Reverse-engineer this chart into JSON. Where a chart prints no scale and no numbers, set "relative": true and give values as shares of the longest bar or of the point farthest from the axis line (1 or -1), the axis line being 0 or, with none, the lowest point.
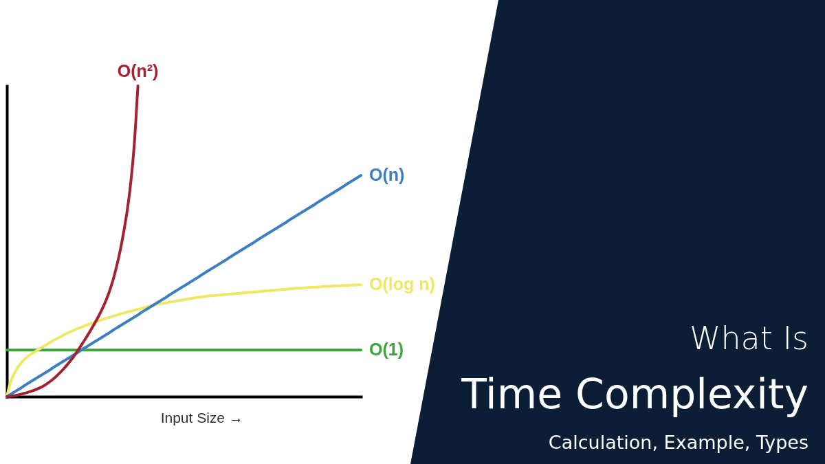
{
  "chart_data": {
    "type": "line",
    "title": "What Is",
    "subtitle": "Time Complexity",
    "annotations": [
      "Calculation, Example, Types"
    ],
    "xlabel": "Input Size →",
    "relative": true,
    "categories": [
      null,
      null,
      null,
      null,
      null,
      null,
      null,
      null,
      null,
      null,
      null,
      null,
      null,
      null,
      null,
      null,
      null,
      null,
      null,
      null,
      null,
      null,
      null,
      null,
      null,
      null,
      null,
      null,
      null,
      null,
      null,
      null,
      null,
      null,
      null,
      null,
      null,
      null,
      null,
      null,
      null,
      null,
      null,
      null,
      null,
      null,
      null,
      null,
      null,
      null,
      null,
      null,
      null,
      null,
      null,
      null,
      null,
      null,
      null,
      null,
      null,
      null,
      null,
      null,
      null,
      null,
      null,
      null,
      null,
      null,
      null,
      null,
      null,
      null,
      null,
      null,
      null,
      null,
      null,
      null,
      null,
      null,
      null,
      null,
      null,
      null,
      null,
      null,
      null,
      null,
      null,
      null,
      null,
      null,
      null,
      null,
      null,
      null,
      null,
      null,
      null
    ],
    "series": [
      {
        "name": "O(1)",
        "color": "#3aa63c",
        "values": [
          0.15,
          0.15,
          0.15,
          0.15,
          0.15,
          0.15,
          0.15,
          0.15,
          0.15,
          0.15,
          0.15,
          0.15,
          0.15,
          0.15,
          0.15,
          0.15,
          0.15,
          0.15,
          0.15,
          0.15,
          0.15,
          0.15,
          0.15,
          0.15,
          0.15,
          0.15,
          0.15,
          0.15,
          0.15,
          0.15,
          0.15,
          0.15,
          0.15,
          0.15,
          0.15,
          0.15,
          0.15,
          0.15,
          0.15,
          0.15,
          0.15,
          0.15,
          0.15,
          0.15,
          0.15,
          0.15,
          0.15,
          0.15,
          0.15,
          0.15,
          0.15,
          0.15,
          0.15,
          0.15,
          0.15,
          0.15,
          0.15,
          0.15,
          0.15,
          0.15,
          0.15,
          0.15,
          0.15,
          0.15,
          0.15,
          0.15,
          0.15,
          0.15,
          0.15,
          0.15,
          0.15,
          0.15,
          0.15,
          0.15,
          0.15,
          0.15,
          0.15,
          0.15,
          0.15,
          0.15,
          0.15,
          0.15,
          0.15,
          0.15,
          0.15,
          0.15,
          0.15,
          0.15,
          0.15,
          0.15,
          0.15,
          0.15,
          0.15,
          0.15,
          0.15,
          0.15,
          0.15,
          0.15,
          0.15,
          0.15,
          0.15
        ]
      },
      {
        "name": "O(log n)",
        "color": "#efe766",
        "values": [
          0,
          0.045,
          0.072,
          0.093,
          0.108,
          0.12,
          0.13,
          0.138,
          0.145,
          0.152,
          0.159,
          0.166,
          0.173,
          0.18,
          0.186,
          0.192,
          0.198,
          0.204,
          0.209,
          0.214,
          0.219,
          0.223,
          0.228,
          0.232,
          0.236,
          0.24,
          0.244,
          0.248,
          0.252,
          0.255,
          0.259,
          0.262,
          0.266,
          0.269,
          0.272,
          0.275,
          0.278,
          0.281,
          0.284,
          0.287,
          0.29,
          0.293,
          0.296,
          0.298,
          0.3,
          0.302,
          0.304,
          0.306,
          0.308,
          0.31,
          0.312,
          0.314,
          0.316,
          0.318,
          0.32,
          0.321,
          0.323,
          0.324,
          0.325,
          0.326,
          0.327,
          0.328,
          0.329,
          0.33,
          0.331,
          0.332,
          0.333,
          0.334,
          0.335,
          0.336,
          0.337,
          0.338,
          0.339,
          0.34,
          0.341,
          0.342,
          0.343,
          0.344,
          0.345,
          0.346,
          0.347,
          0.348,
          0.349,
          0.349,
          0.35,
          0.351,
          0.352,
          0.352,
          0.353,
          0.354,
          0.355,
          0.355,
          0.356,
          0.357,
          0.357,
          0.358,
          0.358,
          0.359,
          0.359,
          0.36,
          0.36
        ]
      },
      {
        "name": "O(n)",
        "color": "#3c7fc0",
        "values": [
          0,
          0.007,
          0.014,
          0.021,
          0.028,
          0.036,
          0.043,
          0.05,
          0.057,
          0.064,
          0.071,
          0.078,
          0.085,
          0.093,
          0.1,
          0.107,
          0.114,
          0.121,
          0.128,
          0.135,
          0.142,
          0.15,
          0.157,
          0.164,
          0.171,
          0.178,
          0.185,
          0.192,
          0.199,
          0.206,
          0.214,
          0.221,
          0.228,
          0.235,
          0.242,
          0.249,
          0.256,
          0.263,
          0.271,
          0.278,
          0.285,
          0.292,
          0.299,
          0.306,
          0.313,
          0.32,
          0.328,
          0.335,
          0.342,
          0.349,
          0.356,
          0.363,
          0.37,
          0.377,
          0.384,
          0.392,
          0.399,
          0.406,
          0.413,
          0.42,
          0.427,
          0.434,
          0.441,
          0.449,
          0.456,
          0.463,
          0.47,
          0.477,
          0.484,
          0.491,
          0.498,
          0.506,
          0.513,
          0.52,
          0.527,
          0.534,
          0.541,
          0.548,
          0.555,
          0.562,
          0.57,
          0.577,
          0.584,
          0.591,
          0.598,
          0.605,
          0.612,
          0.619,
          0.627,
          0.634,
          0.641,
          0.648,
          0.655,
          0.662,
          0.669,
          0.676,
          0.684,
          0.691,
          0.698,
          0.705,
          0.712
        ]
      },
      {
        "name": "O(n²)",
        "color": "#a4222f",
        "values": [
          0,
          0.001,
          0.003,
          0.005,
          0.008,
          0.011,
          0.014,
          0.018,
          0.022,
          0.027,
          0.032,
          0.039,
          0.047,
          0.056,
          0.066,
          0.077,
          0.089,
          0.102,
          0.116,
          0.131,
          0.148,
          0.165,
          0.183,
          0.201,
          0.22,
          0.24,
          0.261,
          0.284,
          0.31,
          0.34,
          0.376,
          0.42,
          0.47,
          0.53,
          0.6,
          0.69,
          0.815,
          1,
          null,
          null,
          null,
          null,
          null,
          null,
          null,
          null,
          null,
          null,
          null,
          null,
          null,
          null,
          null,
          null,
          null,
          null,
          null,
          null,
          null,
          null,
          null,
          null,
          null,
          null,
          null,
          null,
          null,
          null,
          null,
          null,
          null,
          null,
          null,
          null,
          null,
          null,
          null,
          null,
          null,
          null,
          null,
          null,
          null,
          null,
          null,
          null,
          null,
          null,
          null,
          null,
          null,
          null,
          null,
          null,
          null,
          null,
          null,
          null,
          null,
          null,
          null
        ]
      }
    ]
  }
}
